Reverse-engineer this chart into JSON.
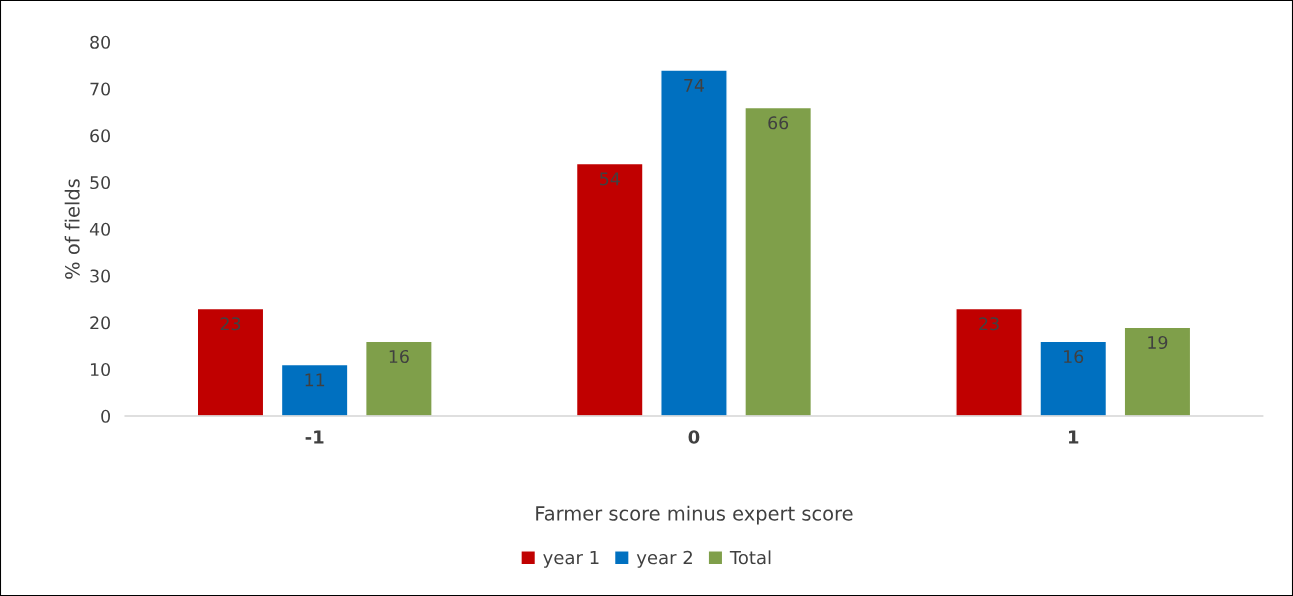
{
  "chart_data": {
    "type": "bar",
    "xlabel": "Farmer score minus expert score",
    "ylabel": "% of fields",
    "categories": [
      "-1",
      "0",
      "1"
    ],
    "series": [
      {
        "name": "year 1",
        "color": "#c00000",
        "values": [
          23,
          54,
          23
        ]
      },
      {
        "name": "year 2",
        "color": "#0070c0",
        "values": [
          11,
          74,
          16
        ]
      },
      {
        "name": "Total",
        "color": "#7f9f4a",
        "values": [
          16,
          66,
          19
        ]
      }
    ],
    "ylim": [
      0,
      80
    ],
    "yticks": [
      0,
      10,
      20,
      30,
      40,
      50,
      60,
      70,
      80
    ],
    "grid": false,
    "legend": "bottom",
    "data_labels": true
  }
}
